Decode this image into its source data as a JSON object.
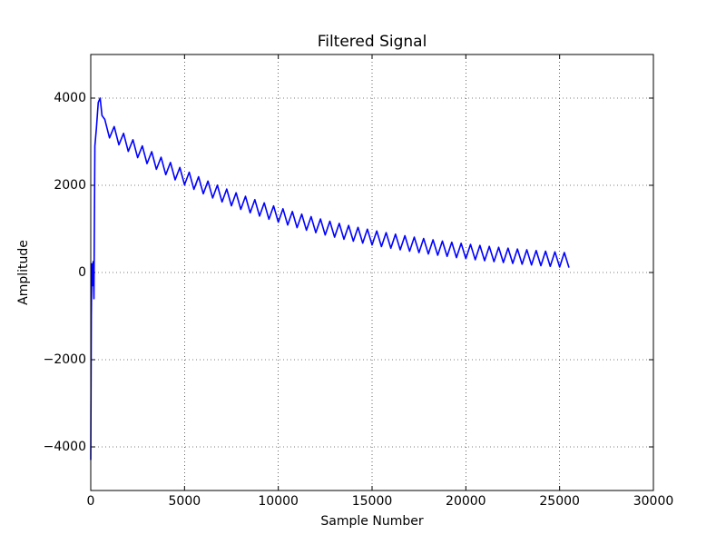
{
  "chart_data": {
    "type": "line",
    "title": "Filtered Signal",
    "x_label": "Sample Number",
    "y_label": "Amplitude",
    "xlim": [
      0,
      30000
    ],
    "xticks": [
      0,
      5000,
      10000,
      15000,
      20000,
      25000,
      30000
    ],
    "ylim": [
      -5000,
      5000
    ],
    "yticks": [
      {
        "value": -4000,
        "label": "−4000"
      },
      {
        "value": -2000,
        "label": "−2000"
      },
      0,
      2000,
      4000
    ],
    "grid": true,
    "series": [
      {
        "color": "#0000ff",
        "x": [
          0,
          30,
          60,
          100,
          130,
          170,
          220,
          300,
          400,
          500,
          600,
          750,
          1000,
          1250,
          1500,
          1750,
          2000,
          2250,
          2500,
          2750,
          3000,
          3250,
          3500,
          3750,
          4000,
          4250,
          4500,
          4750,
          5000,
          5250,
          5500,
          5750,
          6000,
          6250,
          6500,
          6750,
          7000,
          7250,
          7500,
          7750,
          8000,
          8250,
          8500,
          8750,
          9000,
          9250,
          9500,
          9750,
          10000,
          10250,
          10500,
          10750,
          11000,
          11250,
          11500,
          11750,
          12000,
          12250,
          12500,
          12750,
          13000,
          13250,
          13500,
          13750,
          14000,
          14250,
          14500,
          14750,
          15000,
          15250,
          15500,
          15750,
          16000,
          16250,
          16500,
          16750,
          17000,
          17250,
          17500,
          17750,
          18000,
          18250,
          18500,
          18750,
          19000,
          19250,
          19500,
          19750,
          20000,
          20250,
          20500,
          20750,
          21000,
          21250,
          21500,
          21750,
          22000,
          22250,
          22500,
          22750,
          23000,
          23250,
          23500,
          23750,
          24000,
          24250,
          24500,
          24750,
          25000,
          25250,
          25500
        ],
        "values": [
          -4300,
          -1000,
          200,
          -300,
          250,
          -600,
          2900,
          3300,
          3900,
          4000,
          3600,
          3510,
          3087,
          3347,
          2929,
          3192,
          2777,
          3045,
          2634,
          2905,
          2497,
          2771,
          2367,
          2644,
          2243,
          2524,
          2125,
          2409,
          2013,
          2300,
          1907,
          2196,
          1806,
          2097,
          1709,
          2003,
          1618,
          1914,
          1530,
          1829,
          1448,
          1748,
          1369,
          1671,
          1294,
          1597,
          1222,
          1528,
          1154,
          1462,
          1090,
          1399,
          1028,
          1339,
          970,
          1282,
          914,
          1228,
          861,
          1176,
          811,
          1127,
          763,
          1080,
          718,
          1036,
          674,
          994,
          633,
          953,
          594,
          915,
          557,
          879,
          521,
          844,
          488,
          811,
          456,
          780,
          425,
          750,
          396,
          722,
          369,
          695,
          342,
          670,
          317,
          645,
          293,
          622,
          271,
          600,
          249,
          579,
          229,
          559,
          209,
          540,
          191,
          522,
          173,
          505,
          157,
          489,
          141,
          473,
          126,
          458,
          111
        ]
      }
    ]
  }
}
